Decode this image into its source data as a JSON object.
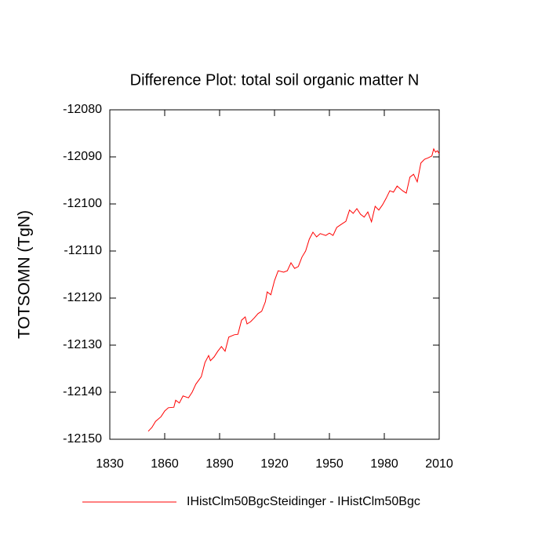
{
  "chart_data": {
    "type": "line",
    "title": "Difference Plot: total soil organic matter N",
    "ylabel": "TOTSOMN  (TgN)",
    "x": [
      1851,
      1853,
      1855,
      1858,
      1860,
      1862,
      1865,
      1866,
      1868,
      1870,
      1873,
      1875,
      1877,
      1880,
      1882,
      1884,
      1885,
      1887,
      1889,
      1891,
      1893,
      1895,
      1898,
      1900,
      1902,
      1904,
      1905,
      1907,
      1909,
      1911,
      1913,
      1915,
      1916,
      1918,
      1920,
      1922,
      1925,
      1927,
      1929,
      1931,
      1933,
      1935,
      1937,
      1939,
      1941,
      1943,
      1945,
      1948,
      1950,
      1952,
      1954,
      1957,
      1959,
      1961,
      1963,
      1965,
      1967,
      1969,
      1971,
      1973,
      1975,
      1977,
      1979,
      1981,
      1983,
      1985,
      1987,
      1990,
      1992,
      1994,
      1996,
      1998,
      2000,
      2002,
      2004,
      2006,
      2007,
      2008,
      2009,
      2010
    ],
    "series": [
      {
        "name": "IHistClm50BgcSteidinger - IHistClm50Bgc",
        "color": "#ff0000",
        "values": [
          -12148.3,
          -12147.5,
          -12146.2,
          -12145.2,
          -12144,
          -12143.3,
          -12143.2,
          -12141.7,
          -12142.3,
          -12140.8,
          -12141.2,
          -12140,
          -12138.3,
          -12136.7,
          -12133.7,
          -12132.2,
          -12133.3,
          -12132.5,
          -12131.3,
          -12130.3,
          -12131.3,
          -12128.3,
          -12127.8,
          -12127.7,
          -12124.7,
          -12124,
          -12125.5,
          -12125,
          -12124.2,
          -12123.3,
          -12122.8,
          -12120.8,
          -12118.7,
          -12119.3,
          -12116.3,
          -12114.2,
          -12114.5,
          -12114.2,
          -12112.5,
          -12113.7,
          -12113.3,
          -12111.3,
          -12110,
          -12107.5,
          -12106,
          -12107,
          -12106.3,
          -12106.7,
          -12106.2,
          -12106.7,
          -12105,
          -12104.2,
          -12103.7,
          -12101.3,
          -12102,
          -12101,
          -12102.2,
          -12102.8,
          -12101.7,
          -12103.8,
          -12100.5,
          -12101.3,
          -12100.2,
          -12098.8,
          -12097.2,
          -12097.5,
          -12096.2,
          -12097.2,
          -12097.7,
          -12094.3,
          -12093.7,
          -12095.3,
          -12091.3,
          -12090.5,
          -12090.2,
          -12089.8,
          -12088.3,
          -12089,
          -12088.7,
          -12089.3
        ]
      }
    ],
    "xlim": [
      1830,
      2010
    ],
    "xticks": [
      1830,
      1860,
      1890,
      1920,
      1950,
      1980,
      2010
    ],
    "ylim": [
      -12150,
      -12080
    ],
    "yticks": [
      -12150,
      -12140,
      -12130,
      -12120,
      -12110,
      -12100,
      -12090,
      -12080
    ]
  }
}
